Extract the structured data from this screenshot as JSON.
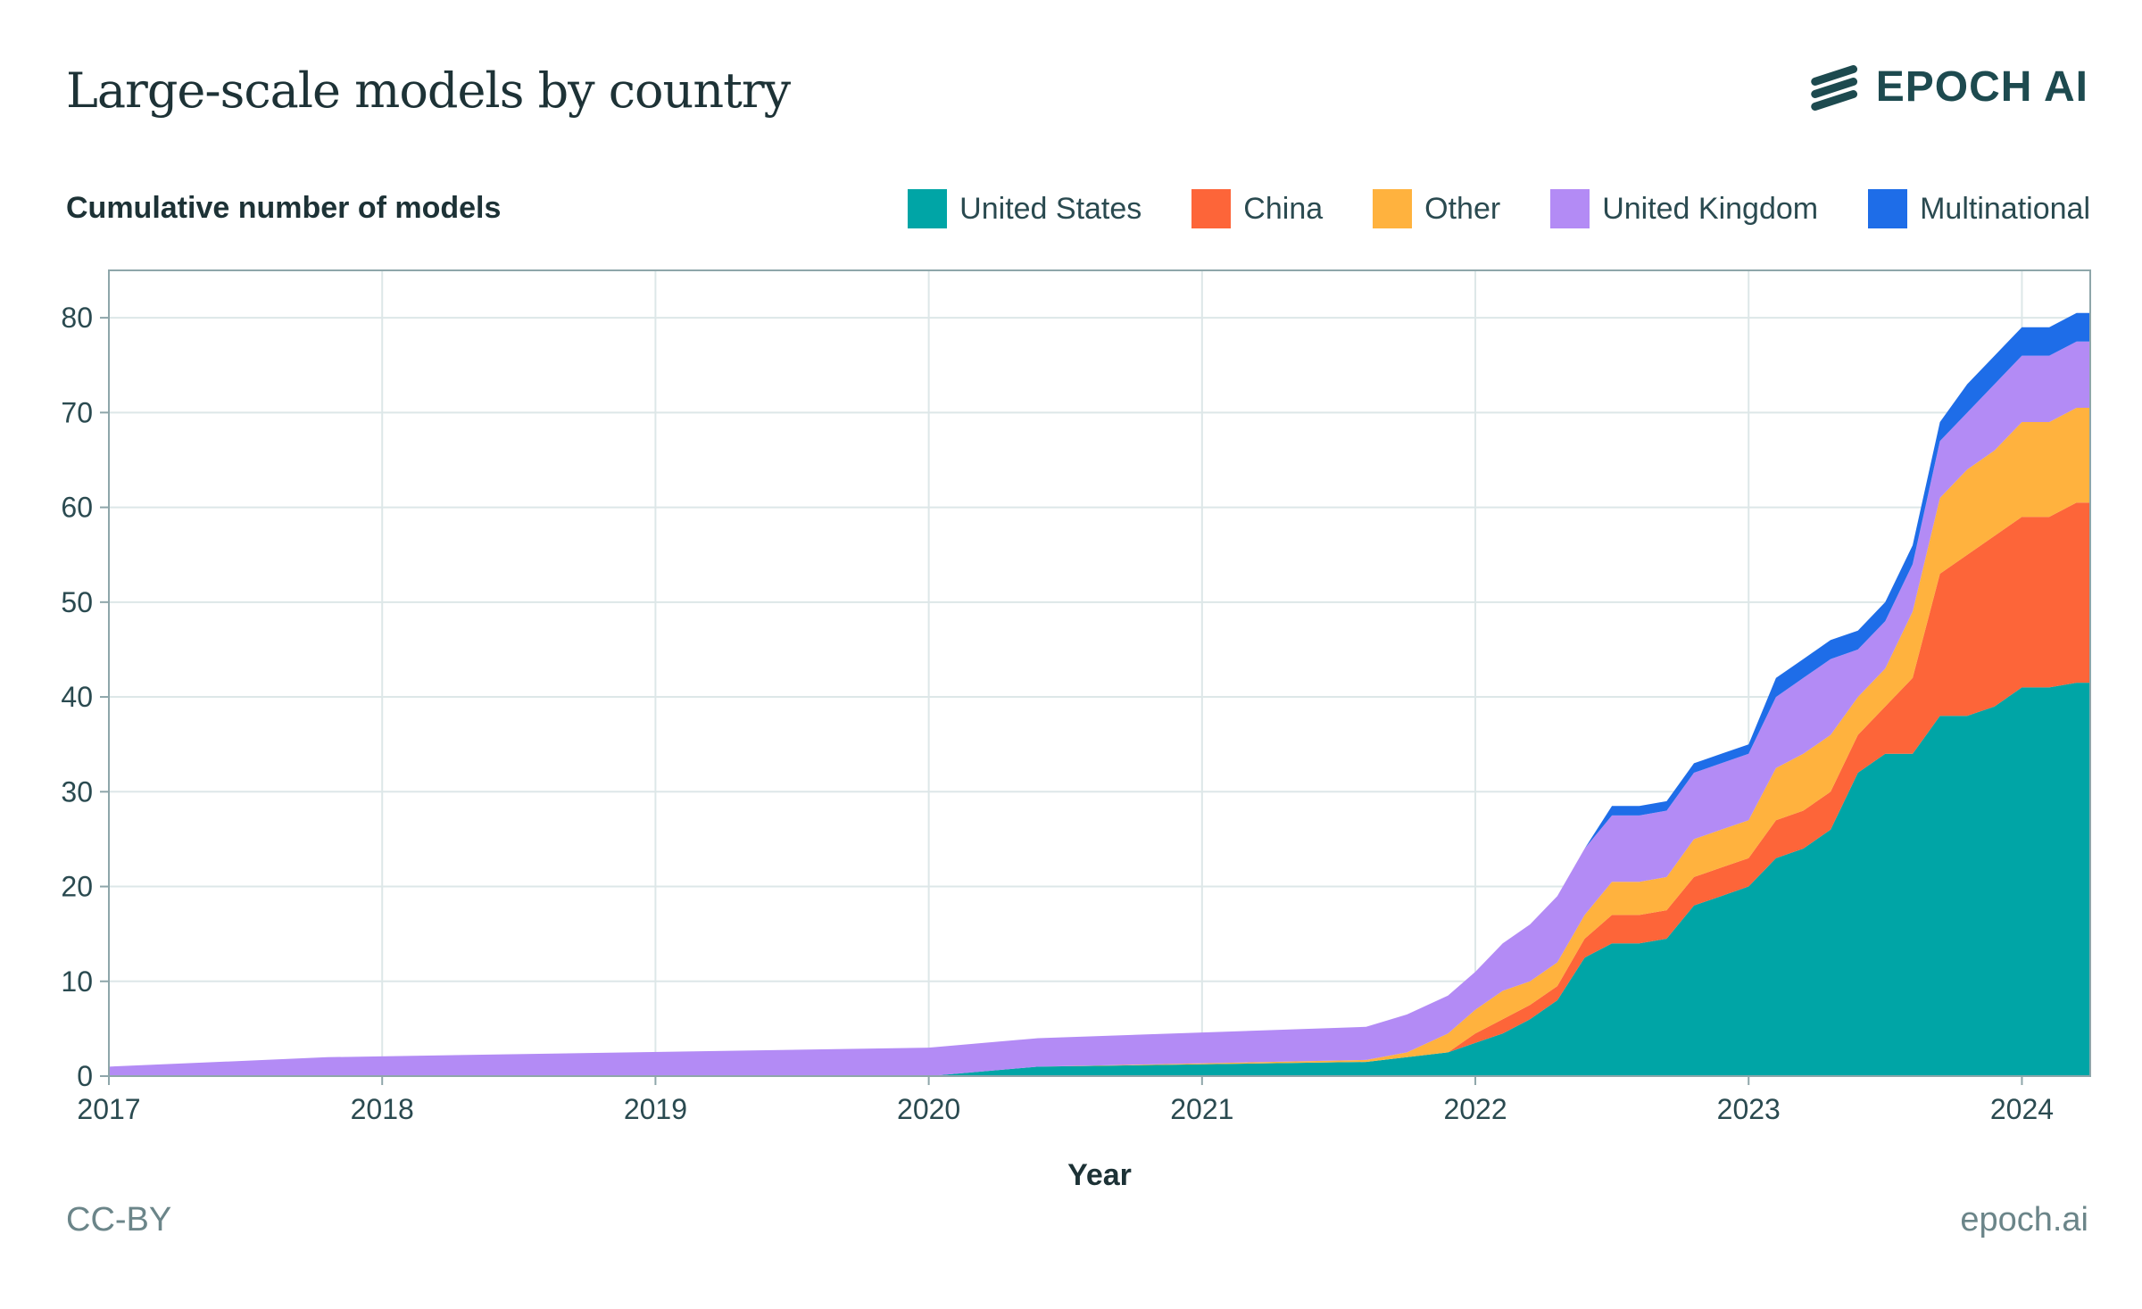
{
  "header": {
    "title": "Large-scale models by country",
    "brand": "EPOCH AI"
  },
  "footer": {
    "license": "CC-BY",
    "site": "epoch.ai"
  },
  "colors": {
    "united_states": "#00a5a6",
    "china": "#fd6539",
    "other": "#ffb23e",
    "united_kingdom": "#b38bf5",
    "multinational": "#1e6de8",
    "grid": "#dde7e8",
    "axis": "#8ea6aa",
    "text": "#1d3236"
  },
  "chart_data": {
    "type": "area",
    "stacked": true,
    "title": "Large-scale models by country",
    "xlabel": "Year",
    "ylabel": "Cumulative number of models",
    "xlim": [
      2017.0,
      2024.25
    ],
    "ylim": [
      0,
      85
    ],
    "xticks": [
      2017,
      2018,
      2019,
      2020,
      2021,
      2022,
      2023,
      2024
    ],
    "yticks": [
      0,
      10,
      20,
      30,
      40,
      50,
      60,
      70,
      80
    ],
    "grid": true,
    "legend_position": "top-right",
    "x": [
      2017.0,
      2017.8,
      2020.0,
      2020.4,
      2021.6,
      2021.75,
      2021.9,
      2022.0,
      2022.1,
      2022.2,
      2022.3,
      2022.4,
      2022.5,
      2022.6,
      2022.7,
      2022.8,
      2022.9,
      2023.0,
      2023.1,
      2023.2,
      2023.3,
      2023.4,
      2023.5,
      2023.6,
      2023.7,
      2023.8,
      2023.9,
      2024.0,
      2024.1,
      2024.2,
      2024.25
    ],
    "series": [
      {
        "name": "United States",
        "color": "#00a5a6",
        "values": [
          0,
          0,
          0,
          1,
          1.5,
          2,
          2.5,
          3.5,
          4.5,
          6,
          8,
          12.5,
          14,
          14,
          14.5,
          18,
          19,
          20,
          23,
          24,
          26,
          32,
          34,
          34,
          38,
          38,
          39,
          41,
          41,
          41.5,
          41.5
        ]
      },
      {
        "name": "China",
        "color": "#fd6539",
        "values": [
          0,
          0,
          0,
          0,
          0,
          0,
          0,
          1,
          1.5,
          1.5,
          1.5,
          2,
          3,
          3,
          3,
          3,
          3,
          3,
          4,
          4,
          4,
          4,
          5,
          8,
          15,
          17,
          18,
          18,
          18,
          19,
          19
        ]
      },
      {
        "name": "Other",
        "color": "#ffb23e",
        "values": [
          0,
          0,
          0,
          0,
          0.2,
          0.5,
          2,
          2.5,
          3,
          2.5,
          2.5,
          2.5,
          3.5,
          3.5,
          3.5,
          4,
          4,
          4,
          5.5,
          6,
          6,
          4,
          4,
          7,
          8,
          9,
          9,
          10,
          10,
          10,
          10
        ]
      },
      {
        "name": "United Kingdom",
        "color": "#b38bf5",
        "values": [
          1,
          2,
          3,
          3,
          3.5,
          4,
          4,
          4,
          5,
          6,
          7,
          7,
          7,
          7,
          7,
          7,
          7,
          7,
          7.5,
          8,
          8,
          5,
          5,
          5,
          6,
          6,
          7,
          7,
          7,
          7,
          7
        ]
      },
      {
        "name": "Multinational",
        "color": "#1e6de8",
        "values": [
          0,
          0,
          0,
          0,
          0,
          0,
          0,
          0,
          0,
          0,
          0,
          0,
          1,
          1,
          1,
          1,
          1,
          1,
          2,
          2,
          2,
          2,
          2,
          2,
          2,
          3,
          3,
          3,
          3,
          3,
          3
        ]
      }
    ]
  }
}
